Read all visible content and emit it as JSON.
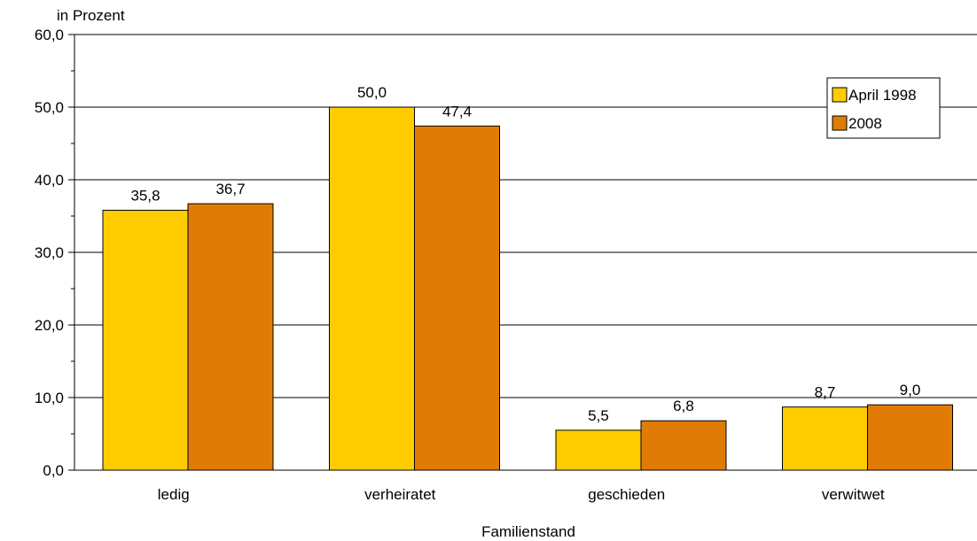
{
  "chart_data": {
    "type": "bar",
    "ylabel": "in Prozent",
    "xlabel": "Familienstand",
    "categories": [
      "ledig",
      "verheiratet",
      "geschieden",
      "verwitwet"
    ],
    "series": [
      {
        "name": "April 1998",
        "values": [
          35.8,
          50.0,
          5.5,
          8.7
        ],
        "labels": [
          "35,8",
          "50,0",
          "5,5",
          "8,7"
        ],
        "color": "#FFCC00"
      },
      {
        "name": "2008",
        "values": [
          36.7,
          47.4,
          6.8,
          9.0
        ],
        "labels": [
          "36,7",
          "47,4",
          "6,8",
          "9,0"
        ],
        "color": "#E07C05"
      }
    ],
    "ylim": [
      0,
      60
    ],
    "yticks": [
      0,
      10,
      20,
      30,
      40,
      50,
      60
    ],
    "ytick_labels": [
      "0,0",
      "10,0",
      "20,0",
      "30,0",
      "40,0",
      "50,0",
      "60,0"
    ],
    "grid": true,
    "legend_position": "top-right"
  }
}
